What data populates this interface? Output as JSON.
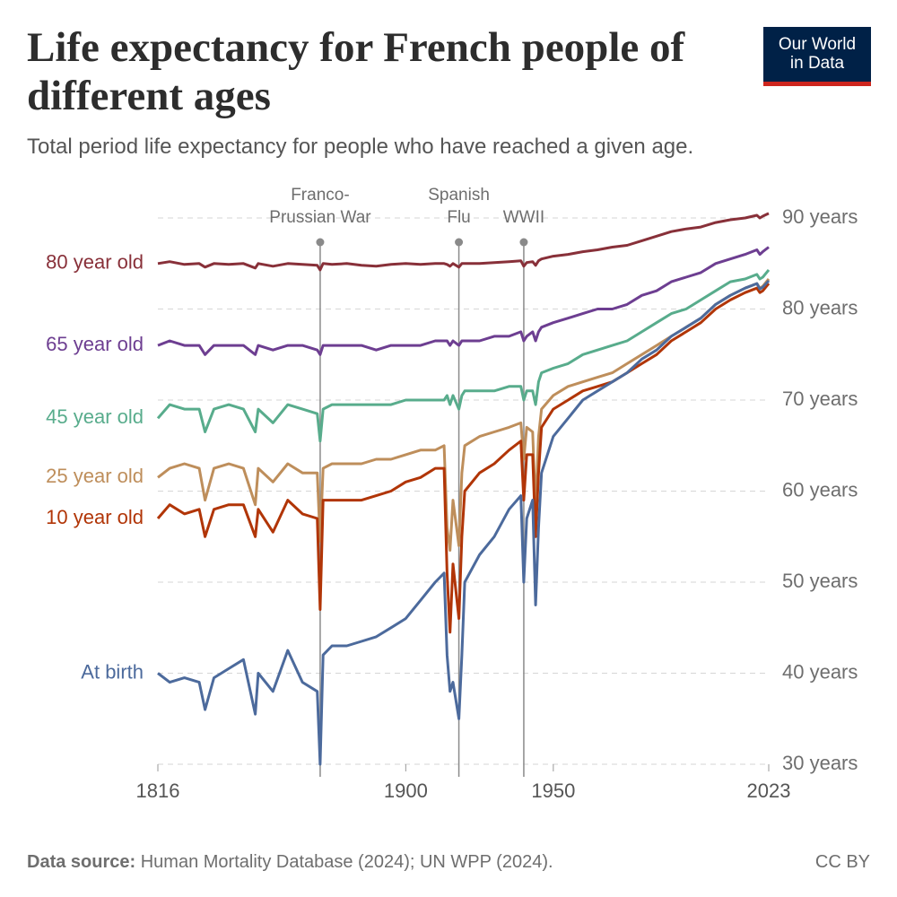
{
  "chart_data": {
    "type": "line",
    "title": "Life expectancy for French people of different ages",
    "subtitle": "Total period life expectancy for people who have reached a given age.",
    "logo": "Our World in Data",
    "source_label": "Data source:",
    "source": "Human Mortality Database (2024); UN WPP (2024).",
    "license": "CC BY",
    "xlim": [
      1816,
      2023
    ],
    "xticks": [
      1816,
      1900,
      1950,
      2023
    ],
    "ylim": [
      30,
      90
    ],
    "yticks": [
      {
        "value": 30,
        "label": "30 years"
      },
      {
        "value": 40,
        "label": "40 years"
      },
      {
        "value": 50,
        "label": "50 years"
      },
      {
        "value": 60,
        "label": "60 years"
      },
      {
        "value": 70,
        "label": "70 years"
      },
      {
        "value": 80,
        "label": "80 years"
      },
      {
        "value": 90,
        "label": "90 years"
      }
    ],
    "grid": true,
    "annotations": [
      {
        "x": 1871,
        "label": [
          "Franco-",
          "Prussian War"
        ]
      },
      {
        "x": 1918,
        "label": [
          "Spanish",
          "Flu"
        ]
      },
      {
        "x": 1940,
        "label": [
          "WWII"
        ]
      }
    ],
    "x": [
      1816,
      1820,
      1825,
      1830,
      1832,
      1835,
      1840,
      1845,
      1849,
      1850,
      1855,
      1860,
      1865,
      1870,
      1871,
      1872,
      1875,
      1880,
      1885,
      1890,
      1895,
      1900,
      1905,
      1910,
      1913,
      1914,
      1915,
      1916,
      1918,
      1919,
      1920,
      1925,
      1930,
      1935,
      1939,
      1940,
      1941,
      1943,
      1944,
      1945,
      1946,
      1950,
      1955,
      1960,
      1965,
      1970,
      1975,
      1980,
      1985,
      1990,
      1995,
      2000,
      2005,
      2010,
      2015,
      2019,
      2020,
      2021,
      2023
    ],
    "series": [
      {
        "name": "80 year old",
        "color": "#883039",
        "values": [
          85,
          85.2,
          84.9,
          85,
          84.6,
          85,
          84.9,
          85,
          84.5,
          85,
          84.7,
          85,
          84.9,
          84.8,
          84.3,
          85,
          84.9,
          85,
          84.8,
          84.7,
          84.9,
          85,
          84.9,
          85,
          85,
          84.9,
          84.7,
          85,
          84.6,
          85,
          85,
          85,
          85.1,
          85.2,
          85.3,
          84.7,
          85.1,
          85.2,
          84.8,
          85.3,
          85.5,
          85.8,
          86,
          86.3,
          86.5,
          86.8,
          87,
          87.5,
          88,
          88.5,
          88.8,
          89,
          89.5,
          89.8,
          90,
          90.3,
          90,
          90.2,
          90.5
        ]
      },
      {
        "name": "65 year old",
        "color": "#6d3e91",
        "values": [
          76,
          76.5,
          76,
          76,
          75,
          76,
          76,
          76,
          75,
          76,
          75.5,
          76,
          76,
          75.5,
          75,
          76,
          76,
          76,
          76,
          75.5,
          76,
          76,
          76,
          76.5,
          76.5,
          76.5,
          76,
          76.5,
          76,
          76.5,
          76.5,
          76.5,
          77,
          77,
          77.5,
          76.5,
          77,
          77.5,
          76.5,
          77.5,
          78,
          78.5,
          79,
          79.5,
          80,
          80,
          80.5,
          81.5,
          82,
          83,
          83.5,
          84,
          85,
          85.5,
          86,
          86.5,
          86,
          86.3,
          86.8
        ]
      },
      {
        "name": "45 year old",
        "color": "#58ac8c",
        "values": [
          68,
          69.5,
          69,
          69,
          66.5,
          69,
          69.5,
          69,
          66.5,
          69,
          67.5,
          69.5,
          69,
          68.5,
          65.5,
          69,
          69.5,
          69.5,
          69.5,
          69.5,
          69.5,
          70,
          70,
          70,
          70,
          70.5,
          69.5,
          70.5,
          69,
          70.5,
          71,
          71,
          71,
          71.5,
          71.5,
          70,
          71,
          71,
          69.5,
          72,
          73,
          73.5,
          74,
          75,
          75.5,
          76,
          76.5,
          77.5,
          78.5,
          79.5,
          80,
          81,
          82,
          83,
          83.3,
          83.8,
          83.3,
          83.5,
          84.3
        ]
      },
      {
        "name": "25 year old",
        "color": "#be8e5b",
        "values": [
          61.5,
          62.5,
          63,
          62.5,
          59,
          62.5,
          63,
          62.5,
          58.5,
          62.5,
          61,
          63,
          62,
          62,
          54.5,
          62.5,
          63,
          63,
          63,
          63.5,
          63.5,
          64,
          64.5,
          64.5,
          65,
          56,
          53.5,
          59,
          54,
          62,
          65,
          66,
          66.5,
          67,
          67.5,
          63.5,
          67,
          66.5,
          58,
          66,
          69,
          70.5,
          71.5,
          72,
          72.5,
          73,
          74,
          75,
          76,
          77,
          78,
          79,
          80.5,
          81.5,
          82.3,
          82.8,
          82.3,
          82.5,
          83.3
        ]
      },
      {
        "name": "10 year old",
        "color": "#b13507",
        "values": [
          57,
          58.5,
          57.5,
          58,
          55,
          58,
          58.5,
          58.5,
          55,
          58,
          55.5,
          59,
          57.5,
          57,
          47,
          59,
          59,
          59,
          59,
          59.5,
          60,
          61,
          61.5,
          62.5,
          62.5,
          51,
          44.5,
          52,
          46,
          55,
          60,
          62,
          63,
          64.5,
          65.5,
          59,
          64,
          64,
          55,
          62,
          67,
          69,
          70,
          71,
          71.5,
          72,
          73,
          74,
          75,
          76.5,
          77.5,
          78.5,
          80,
          81,
          81.8,
          82.3,
          81.8,
          82,
          82.8
        ]
      },
      {
        "name": "At birth",
        "color": "#4c6a9c",
        "values": [
          40,
          39,
          39.5,
          39,
          36,
          39.5,
          40.5,
          41.5,
          35.5,
          40,
          38,
          42.5,
          39,
          38,
          30,
          42,
          43,
          43,
          43.5,
          44,
          45,
          46,
          48,
          50,
          51,
          42,
          38,
          39,
          35,
          42,
          50,
          53,
          55,
          58,
          59.5,
          50,
          57,
          59,
          47.5,
          56,
          62,
          66,
          68,
          70,
          71,
          72,
          73,
          74.5,
          75.5,
          77,
          78,
          79,
          80.5,
          81.5,
          82.3,
          82.8,
          82.2,
          82.4,
          83.1
        ]
      }
    ]
  }
}
